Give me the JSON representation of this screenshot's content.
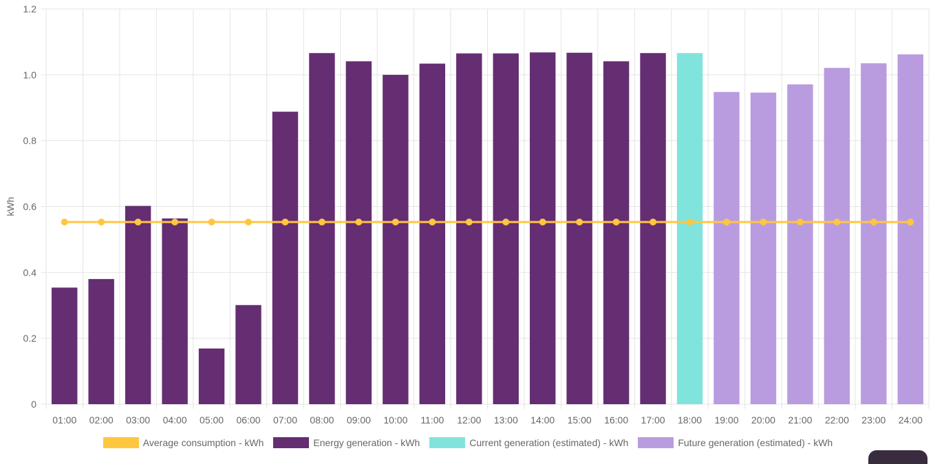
{
  "chart_data": {
    "type": "bar",
    "ylabel": "kWh",
    "ylim": [
      0,
      1.2
    ],
    "yticks": [
      {
        "value": 0,
        "label": "0"
      },
      {
        "value": 0.2,
        "label": "0.2"
      },
      {
        "value": 0.4,
        "label": "0.4"
      },
      {
        "value": 0.6,
        "label": "0.6"
      },
      {
        "value": 0.8,
        "label": "0.8"
      },
      {
        "value": 1.0,
        "label": "1.0"
      },
      {
        "value": 1.2,
        "label": "1.2"
      }
    ],
    "categories": [
      "01:00",
      "02:00",
      "03:00",
      "04:00",
      "05:00",
      "06:00",
      "07:00",
      "08:00",
      "09:00",
      "10:00",
      "11:00",
      "12:00",
      "13:00",
      "14:00",
      "15:00",
      "16:00",
      "17:00",
      "18:00",
      "19:00",
      "20:00",
      "21:00",
      "22:00",
      "23:00",
      "24:00"
    ],
    "grid": true,
    "legend_position": "bottom",
    "series": [
      {
        "name": "Average consumption - kWh",
        "type": "line",
        "color": "#ffc640",
        "values": [
          0.553,
          0.553,
          0.553,
          0.553,
          0.553,
          0.553,
          0.553,
          0.553,
          0.553,
          0.553,
          0.553,
          0.553,
          0.553,
          0.553,
          0.553,
          0.553,
          0.553,
          0.553,
          0.553,
          0.553,
          0.553,
          0.553,
          0.553,
          0.553
        ]
      },
      {
        "name": "Energy generation - kWh",
        "type": "bar",
        "color": "#652d72",
        "values": [
          0.354,
          0.38,
          0.602,
          0.564,
          0.169,
          0.301,
          0.888,
          1.066,
          1.041,
          1.0,
          1.034,
          1.065,
          1.065,
          1.068,
          1.067,
          1.041,
          1.066,
          null,
          null,
          null,
          null,
          null,
          null,
          null
        ]
      },
      {
        "name": "Current generation (estimated) - kWh",
        "type": "bar",
        "color": "#81e4dc",
        "values": [
          null,
          null,
          null,
          null,
          null,
          null,
          null,
          null,
          null,
          null,
          null,
          null,
          null,
          null,
          null,
          null,
          null,
          1.066,
          null,
          null,
          null,
          null,
          null,
          null
        ]
      },
      {
        "name": "Future generation (estimated) - kWh",
        "type": "bar",
        "color": "#b99cdf",
        "values": [
          null,
          null,
          null,
          null,
          null,
          null,
          null,
          null,
          null,
          null,
          null,
          null,
          null,
          null,
          null,
          null,
          null,
          null,
          0.948,
          0.946,
          0.971,
          1.021,
          1.035,
          1.062
        ]
      }
    ]
  }
}
